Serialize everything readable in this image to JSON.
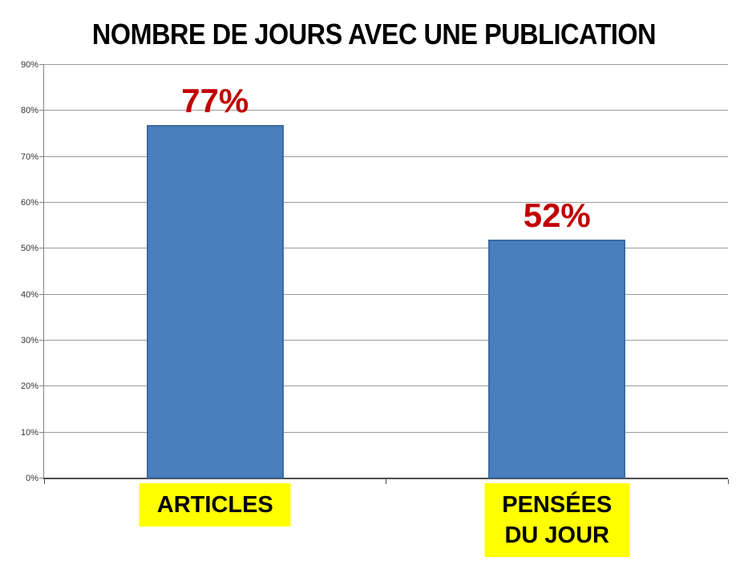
{
  "chart_data": {
    "type": "bar",
    "title": "NOMBRE DE JOURS AVEC UNE PUBLICATION",
    "categories": [
      "ARTICLES",
      "PENSÉES DU JOUR"
    ],
    "category_lines": [
      [
        "ARTICLES"
      ],
      [
        "PENSÉES",
        "DU JOUR"
      ]
    ],
    "values": [
      77,
      52
    ],
    "value_labels": [
      "77%",
      "52%"
    ],
    "xlabel": "",
    "ylabel": "",
    "ylim": [
      0,
      90
    ],
    "y_tick_values": [
      0,
      10,
      20,
      30,
      40,
      50,
      60,
      70,
      80,
      90
    ],
    "y_tick_labels": [
      "0%",
      "10%",
      "20%",
      "30%",
      "40%",
      "50%",
      "60%",
      "70%",
      "80%",
      "90%"
    ],
    "grid": true,
    "legend_position": "none",
    "colors": {
      "bar_fill": "#4a7ebd",
      "bar_border": "#3c6ba5",
      "value_label": "#c00000",
      "category_bg": "#ffff00",
      "category_text": "#000000",
      "gridline": "#9a9a9a",
      "axis": "#4d4d4d",
      "title_text": "#000000",
      "tick_text": "#333333",
      "background": "#ffffff"
    }
  }
}
